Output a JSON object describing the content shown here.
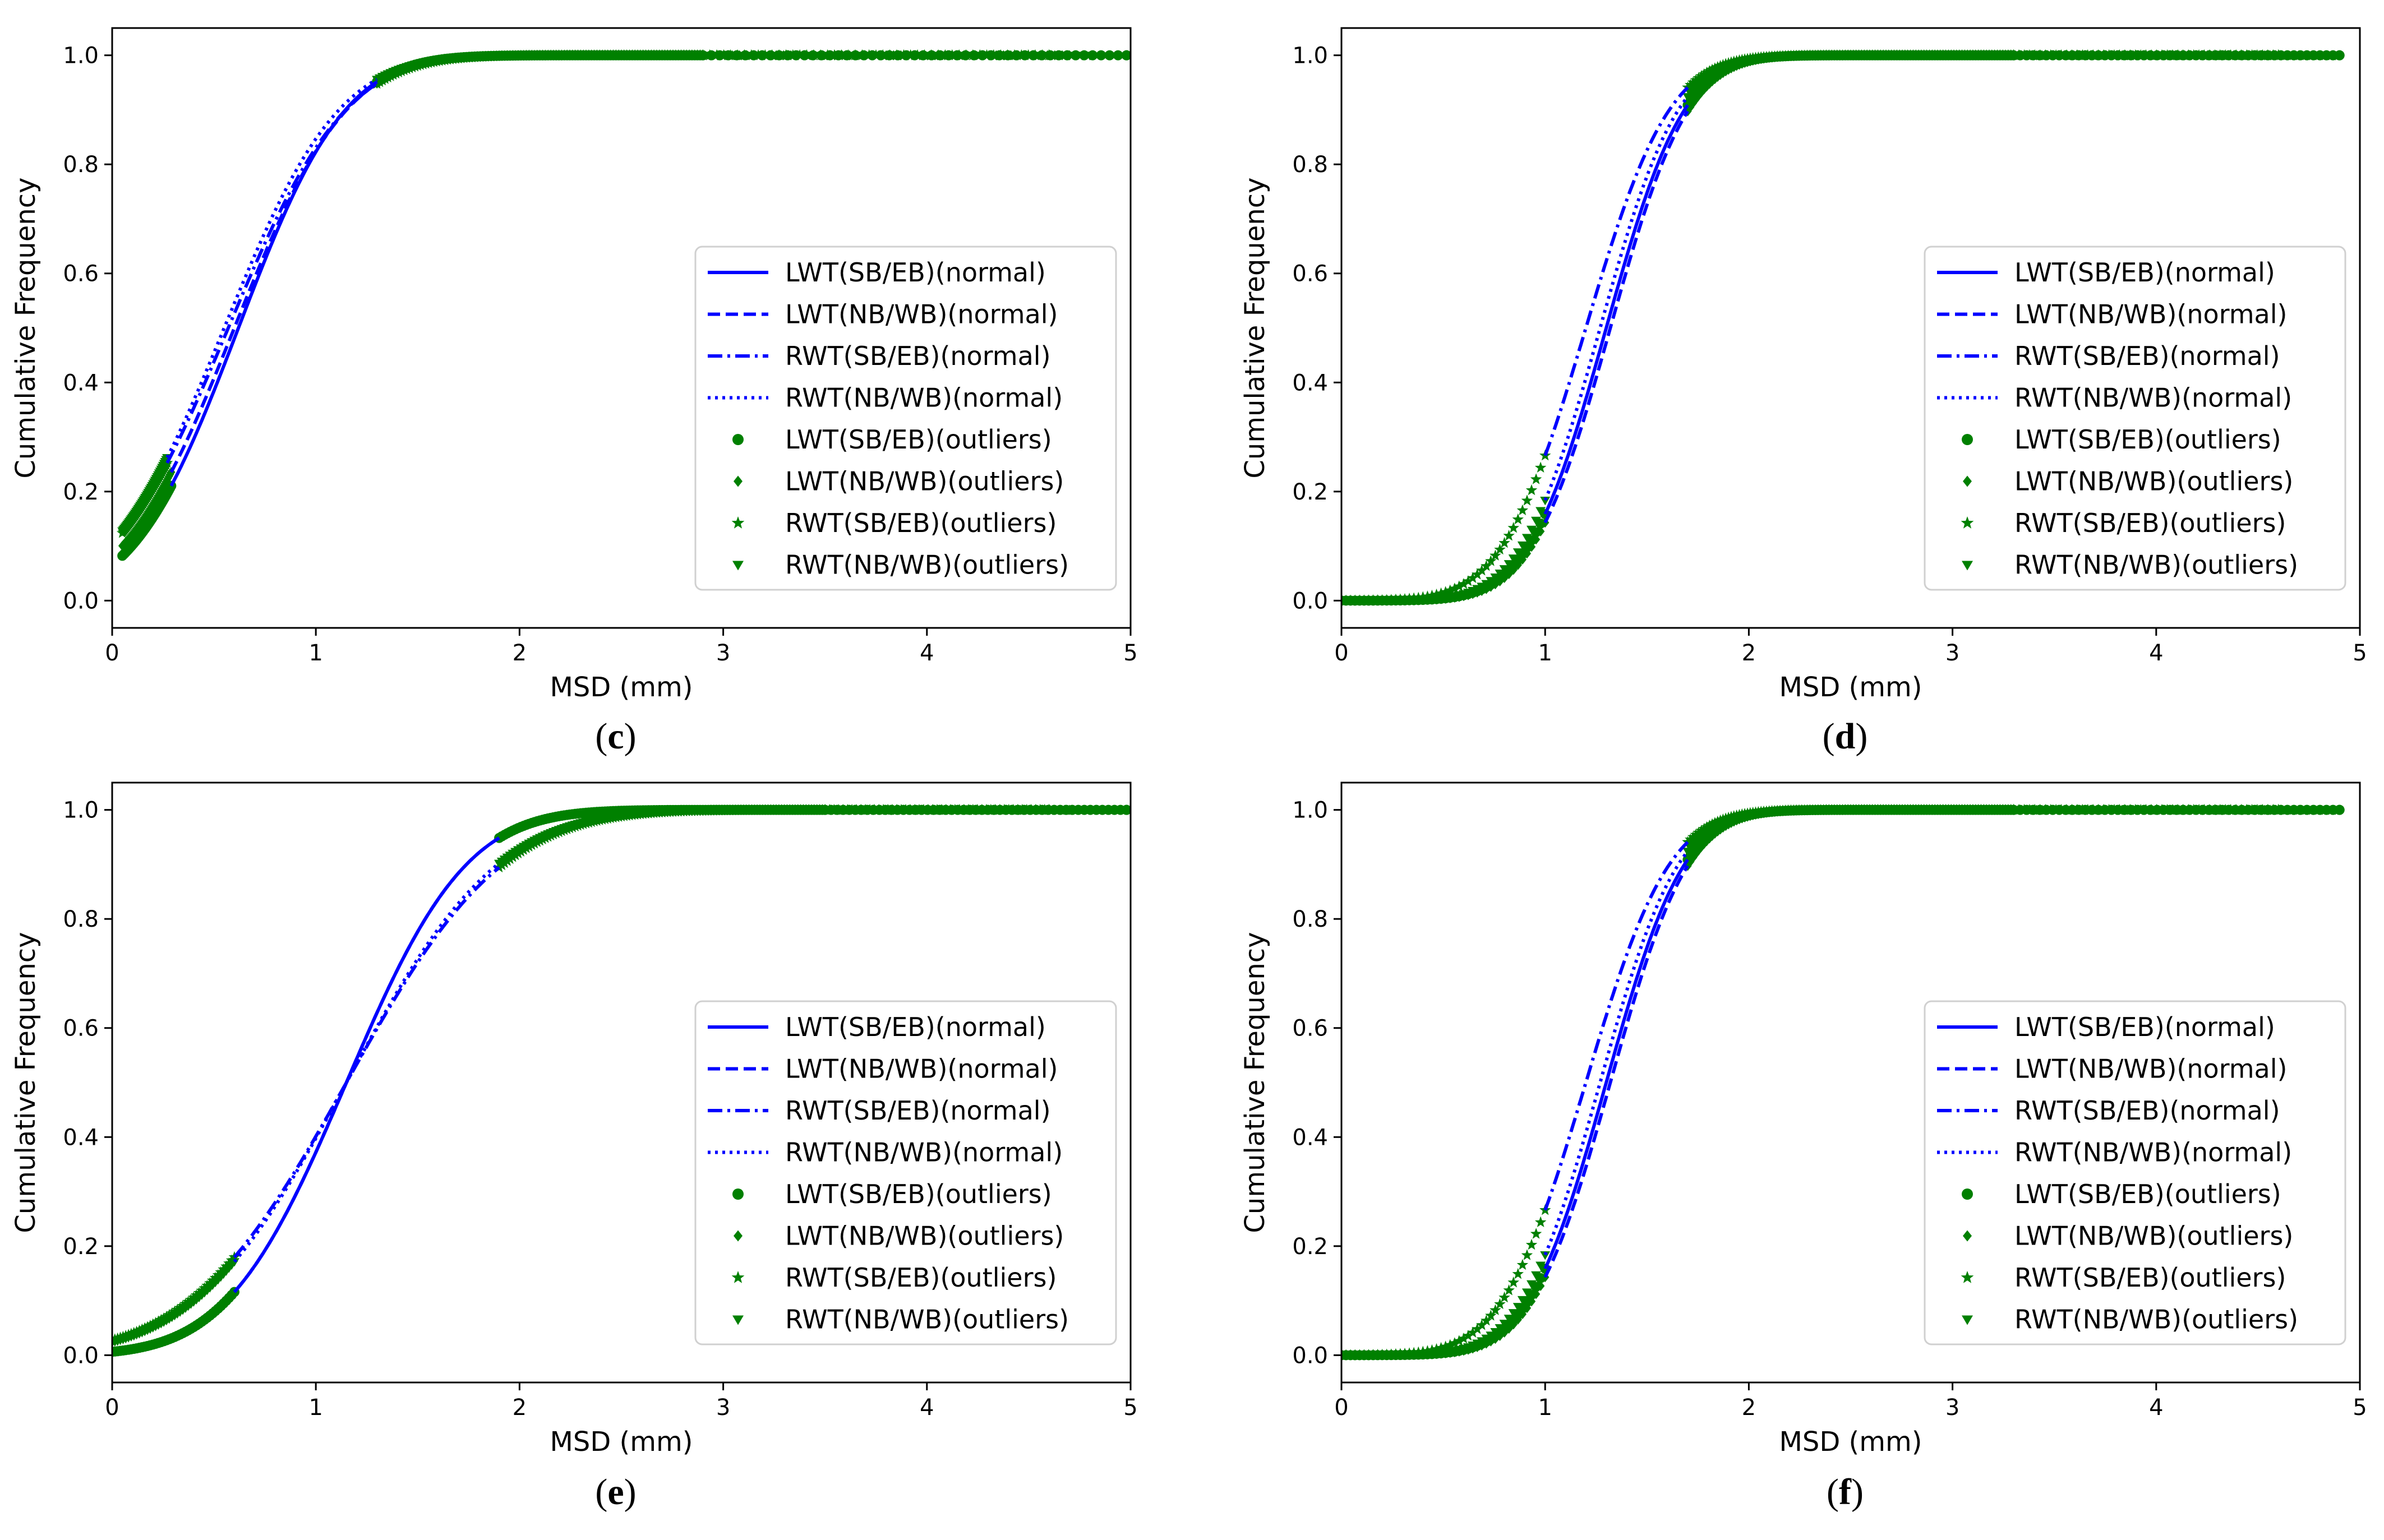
{
  "chart_data": [
    {
      "id": "c",
      "caption": "(c)",
      "type": "line",
      "xlabel": "MSD (mm)",
      "ylabel": "Cumulative Frequency",
      "xlim": [
        0,
        5
      ],
      "ylim": [
        -0.05,
        1.05
      ],
      "xticks": [
        "0",
        "1",
        "2",
        "3",
        "4",
        "5"
      ],
      "yticks": [
        "0.0",
        "0.2",
        "0.4",
        "0.6",
        "0.8",
        "1.0"
      ],
      "legend_position": "center-right",
      "series": [
        {
          "name": "LWT(SB/EB)(normal)",
          "style": "solid",
          "mu": 0.62,
          "sigma": 0.41,
          "x_range": [
            0.29,
            1.3
          ]
        },
        {
          "name": "LWT(NB/WB)(normal)",
          "style": "dashed",
          "mu": 0.6,
          "sigma": 0.43,
          "x_range": [
            0.29,
            1.3
          ]
        },
        {
          "name": "RWT(SB/EB)(normal)",
          "style": "dashdot",
          "mu": 0.57,
          "sigma": 0.45,
          "x_range": [
            0.27,
            1.3
          ]
        },
        {
          "name": "RWT(NB/WB)(normal)",
          "style": "dotted",
          "mu": 0.55,
          "sigma": 0.44,
          "x_range": [
            0.27,
            1.3
          ]
        },
        {
          "name": "LWT(SB/EB)(outliers)",
          "marker": "circle",
          "mu": 0.62,
          "sigma": 0.41,
          "low": [
            0.05,
            0.29
          ],
          "high": [
            1.3,
            4.98
          ]
        },
        {
          "name": "LWT(NB/WB)(outliers)",
          "marker": "diamond",
          "mu": 0.6,
          "sigma": 0.43,
          "low": [
            0.05,
            0.29
          ],
          "high": [
            1.3,
            4.7
          ]
        },
        {
          "name": "RWT(SB/EB)(outliers)",
          "marker": "star",
          "mu": 0.57,
          "sigma": 0.45,
          "low": [
            0.05,
            0.27
          ],
          "high": [
            1.3,
            4.6
          ]
        },
        {
          "name": "RWT(NB/WB)(outliers)",
          "marker": "triangle",
          "mu": 0.55,
          "sigma": 0.44,
          "low": [
            0.05,
            0.27
          ],
          "high": [
            1.3,
            4.8
          ]
        }
      ]
    },
    {
      "id": "d",
      "caption": "(d)",
      "type": "line",
      "xlabel": "MSD (mm)",
      "ylabel": "Cumulative Frequency",
      "xlim": [
        0,
        5
      ],
      "ylim": [
        -0.05,
        1.05
      ],
      "xticks": [
        "0",
        "1",
        "2",
        "3",
        "4",
        "5"
      ],
      "yticks": [
        "0.0",
        "0.2",
        "0.4",
        "0.6",
        "0.8",
        "1.0"
      ],
      "legend_position": "center-right",
      "series": [
        {
          "name": "LWT(SB/EB)(normal)",
          "style": "solid",
          "mu": 1.3,
          "sigma": 0.3,
          "x_range": [
            1.0,
            1.7
          ]
        },
        {
          "name": "LWT(NB/WB)(normal)",
          "style": "dashed",
          "mu": 1.32,
          "sigma": 0.3,
          "x_range": [
            1.0,
            1.7
          ]
        },
        {
          "name": "RWT(SB/EB)(normal)",
          "style": "dashdot",
          "mu": 1.2,
          "sigma": 0.32,
          "x_range": [
            1.0,
            1.7
          ]
        },
        {
          "name": "RWT(NB/WB)(normal)",
          "style": "dotted",
          "mu": 1.27,
          "sigma": 0.3,
          "x_range": [
            1.0,
            1.7
          ]
        },
        {
          "name": "LWT(SB/EB)(outliers)",
          "marker": "circle",
          "mu": 1.3,
          "sigma": 0.3,
          "low": [
            0.0,
            1.0
          ],
          "high": [
            1.7,
            4.9
          ]
        },
        {
          "name": "LWT(NB/WB)(outliers)",
          "marker": "diamond",
          "mu": 1.32,
          "sigma": 0.3,
          "low": [
            0.0,
            1.0
          ],
          "high": [
            1.7,
            4.7
          ]
        },
        {
          "name": "RWT(SB/EB)(outliers)",
          "marker": "star",
          "mu": 1.2,
          "sigma": 0.32,
          "low": [
            0.0,
            1.0
          ],
          "high": [
            1.7,
            4.6
          ]
        },
        {
          "name": "RWT(NB/WB)(outliers)",
          "marker": "triangle",
          "mu": 1.27,
          "sigma": 0.3,
          "low": [
            0.0,
            1.0
          ],
          "high": [
            1.7,
            4.88
          ]
        }
      ]
    },
    {
      "id": "e",
      "caption": "(e)",
      "type": "line",
      "xlabel": "MSD (mm)",
      "ylabel": "Cumulative Frequency",
      "xlim": [
        0,
        5
      ],
      "ylim": [
        -0.05,
        1.05
      ],
      "xticks": [
        "0",
        "1",
        "2",
        "3",
        "4",
        "5"
      ],
      "yticks": [
        "0.0",
        "0.2",
        "0.4",
        "0.6",
        "0.8",
        "1.0"
      ],
      "legend_position": "center-right",
      "series": [
        {
          "name": "LWT(SB/EB)(normal)",
          "style": "solid",
          "mu": 1.15,
          "sigma": 0.46,
          "x_range": [
            0.6,
            1.9
          ]
        },
        {
          "name": "LWT(NB/WB)(normal)",
          "style": "dashed",
          "mu": 1.15,
          "sigma": 0.46,
          "x_range": [
            0.6,
            1.9
          ]
        },
        {
          "name": "RWT(SB/EB)(normal)",
          "style": "dashdot",
          "mu": 1.15,
          "sigma": 0.6,
          "x_range": [
            0.6,
            1.9
          ]
        },
        {
          "name": "RWT(NB/WB)(normal)",
          "style": "dotted",
          "mu": 1.15,
          "sigma": 0.58,
          "x_range": [
            0.6,
            1.9
          ]
        },
        {
          "name": "LWT(SB/EB)(outliers)",
          "marker": "circle",
          "mu": 1.15,
          "sigma": 0.46,
          "low": [
            0.0,
            0.6
          ],
          "high": [
            1.9,
            4.98
          ]
        },
        {
          "name": "LWT(NB/WB)(outliers)",
          "marker": "diamond",
          "mu": 1.15,
          "sigma": 0.46,
          "low": [
            0.0,
            0.6
          ],
          "high": [
            1.9,
            4.7
          ]
        },
        {
          "name": "RWT(SB/EB)(outliers)",
          "marker": "star",
          "mu": 1.15,
          "sigma": 0.6,
          "low": [
            0.0,
            0.6
          ],
          "high": [
            1.9,
            4.6
          ]
        },
        {
          "name": "RWT(NB/WB)(outliers)",
          "marker": "triangle",
          "mu": 1.15,
          "sigma": 0.58,
          "low": [
            0.0,
            0.6
          ],
          "high": [
            1.9,
            4.8
          ]
        }
      ]
    },
    {
      "id": "f",
      "caption": "(f)",
      "type": "line",
      "xlabel": "MSD (mm)",
      "ylabel": "Cumulative Frequency",
      "xlim": [
        0,
        5
      ],
      "ylim": [
        -0.05,
        1.05
      ],
      "xticks": [
        "0",
        "1",
        "2",
        "3",
        "4",
        "5"
      ],
      "yticks": [
        "0.0",
        "0.2",
        "0.4",
        "0.6",
        "0.8",
        "1.0"
      ],
      "legend_position": "center-right",
      "series": [
        {
          "name": "LWT(SB/EB)(normal)",
          "style": "solid",
          "mu": 1.3,
          "sigma": 0.3,
          "x_range": [
            1.0,
            1.7
          ]
        },
        {
          "name": "LWT(NB/WB)(normal)",
          "style": "dashed",
          "mu": 1.32,
          "sigma": 0.3,
          "x_range": [
            1.0,
            1.7
          ]
        },
        {
          "name": "RWT(SB/EB)(normal)",
          "style": "dashdot",
          "mu": 1.2,
          "sigma": 0.32,
          "x_range": [
            1.0,
            1.7
          ]
        },
        {
          "name": "RWT(NB/WB)(normal)",
          "style": "dotted",
          "mu": 1.27,
          "sigma": 0.3,
          "x_range": [
            1.0,
            1.7
          ]
        },
        {
          "name": "LWT(SB/EB)(outliers)",
          "marker": "circle",
          "mu": 1.3,
          "sigma": 0.3,
          "low": [
            0.0,
            1.0
          ],
          "high": [
            1.7,
            4.9
          ]
        },
        {
          "name": "LWT(NB/WB)(outliers)",
          "marker": "diamond",
          "mu": 1.32,
          "sigma": 0.3,
          "low": [
            0.0,
            1.0
          ],
          "high": [
            1.7,
            4.7
          ]
        },
        {
          "name": "RWT(SB/EB)(outliers)",
          "marker": "star",
          "mu": 1.2,
          "sigma": 0.32,
          "low": [
            0.0,
            1.0
          ],
          "high": [
            1.7,
            4.6
          ]
        },
        {
          "name": "RWT(NB/WB)(outliers)",
          "marker": "triangle",
          "mu": 1.27,
          "sigma": 0.3,
          "low": [
            0.0,
            1.0
          ],
          "high": [
            1.7,
            4.88
          ]
        }
      ]
    }
  ],
  "colors": {
    "line": "#0000ff",
    "outliers": "#008000",
    "axes": "#000000",
    "background": "#ffffff"
  }
}
